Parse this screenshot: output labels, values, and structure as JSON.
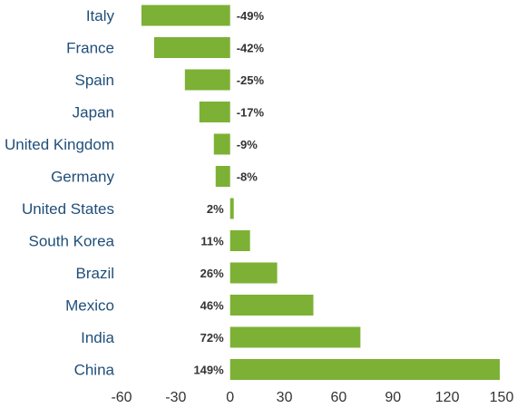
{
  "chart_data": {
    "type": "bar",
    "orientation": "horizontal",
    "categories": [
      "Italy",
      "France",
      "Spain",
      "Japan",
      "United Kingdom",
      "Germany",
      "United States",
      "South Korea",
      "Brazil",
      "Mexico",
      "India",
      "China"
    ],
    "values": [
      -49,
      -42,
      -25,
      -17,
      -9,
      -8,
      2,
      11,
      26,
      46,
      72,
      149
    ],
    "data_labels": [
      "-49%",
      "-42%",
      "-25%",
      "-17%",
      "-9%",
      "-8%",
      "2%",
      "11%",
      "26%",
      "46%",
      "72%",
      "149%"
    ],
    "x_ticks": [
      -60,
      -30,
      0,
      30,
      60,
      90,
      120,
      150
    ],
    "x_tick_labels": [
      "-60",
      "-30",
      "0",
      "30",
      "60",
      "90",
      "120",
      "150"
    ],
    "xlim": [
      -60,
      150
    ],
    "grid": false,
    "legend": "none",
    "bar_color": "#7cb135",
    "category_label_color": "#1f4e79",
    "value_label_color": "#333333"
  }
}
